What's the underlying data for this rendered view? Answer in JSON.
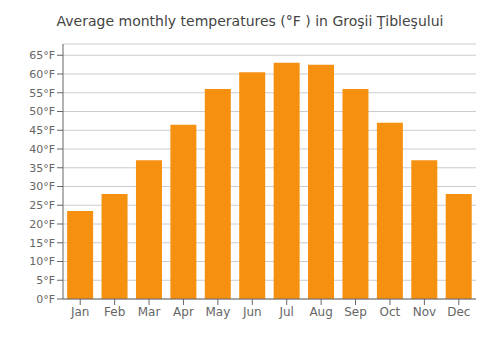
{
  "chart_data": {
    "type": "bar",
    "title": "Average monthly temperatures (°F ) in Groşii Ţibleşului",
    "categories": [
      "Jan",
      "Feb",
      "Mar",
      "Apr",
      "May",
      "Jun",
      "Jul",
      "Aug",
      "Sep",
      "Oct",
      "Nov",
      "Dec"
    ],
    "values": [
      23.5,
      28.0,
      37.0,
      46.5,
      56.0,
      60.5,
      63.0,
      62.5,
      56.0,
      47.0,
      37.0,
      28.0
    ],
    "color": "#F59010",
    "ylim": [
      0,
      68
    ],
    "yticks": [
      {
        "value": 0,
        "label": "0°F"
      },
      {
        "value": 5,
        "label": "5°F"
      },
      {
        "value": 10,
        "label": "10°F"
      },
      {
        "value": 15,
        "label": "15°F"
      },
      {
        "value": 20,
        "label": "20°F"
      },
      {
        "value": 25,
        "label": "25°F"
      },
      {
        "value": 30,
        "label": "30°F"
      },
      {
        "value": 35,
        "label": "35°F"
      },
      {
        "value": 40,
        "label": "40°F"
      },
      {
        "value": 45,
        "label": "45°F"
      },
      {
        "value": 50,
        "label": "50°F"
      },
      {
        "value": 55,
        "label": "55°F"
      },
      {
        "value": 60,
        "label": "60°F"
      },
      {
        "value": 65,
        "label": "65°F"
      }
    ],
    "grid": true
  }
}
